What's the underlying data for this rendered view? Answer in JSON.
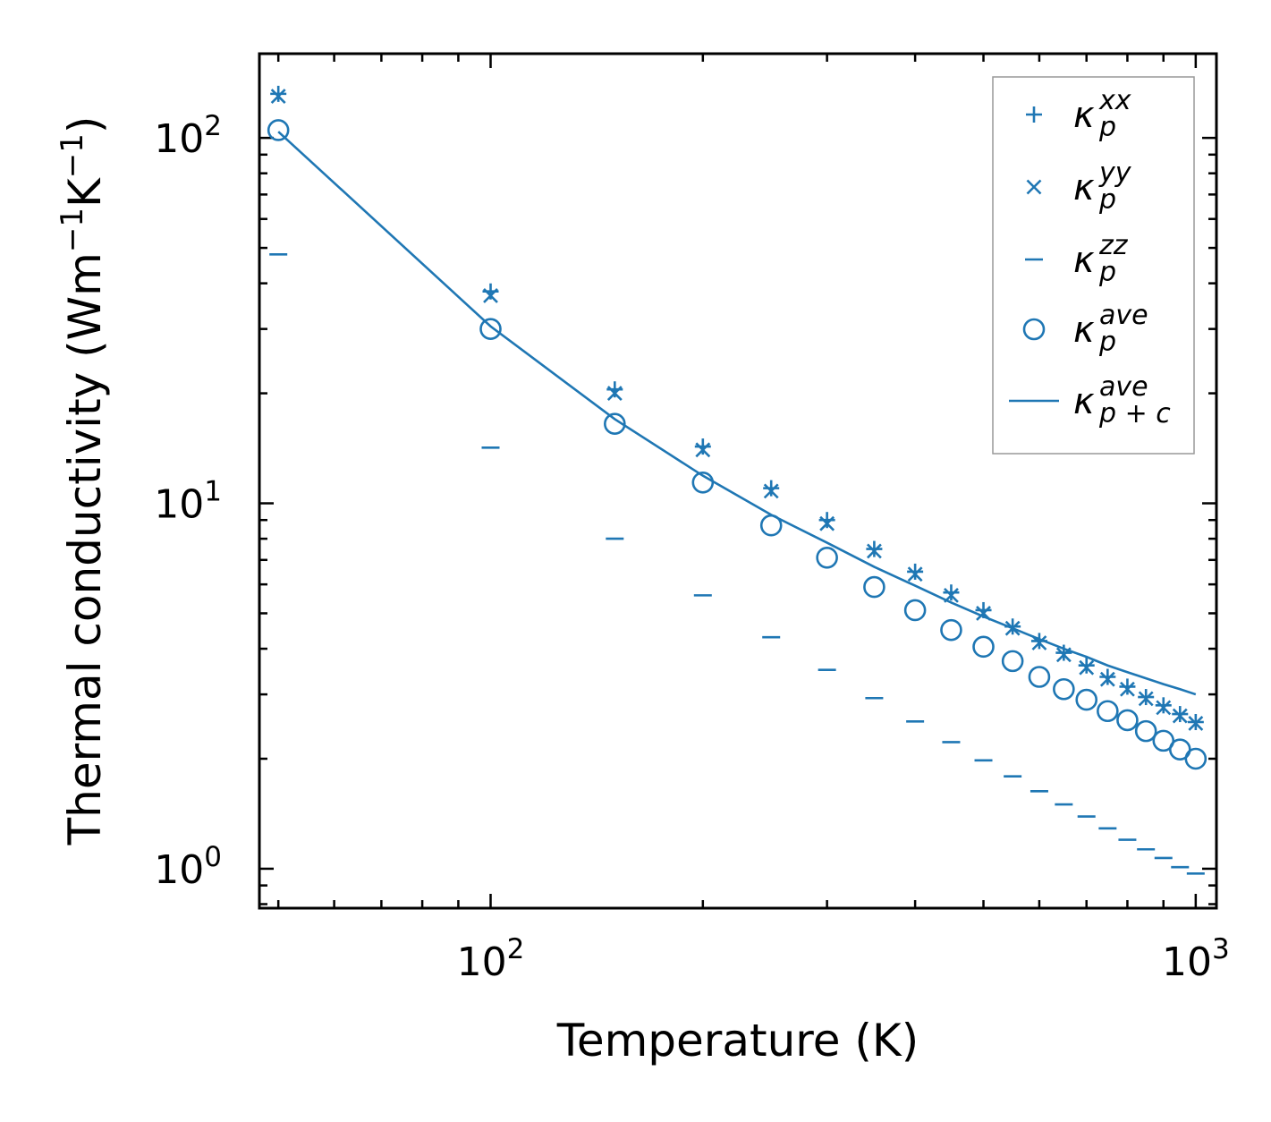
{
  "chart_data": {
    "type": "scatter",
    "title": "",
    "xlabel": "Temperature (K)",
    "ylabel": "Thermal conductivity (Wm$^{-1}$K$^{-1}$)",
    "ylabel_parts": {
      "base": "Thermal conductivity (Wm",
      "exp1": "−1",
      "mid": "K",
      "exp2": "−1",
      "end": ")"
    },
    "xscale": "log",
    "yscale": "log",
    "xlim": [
      47,
      1070
    ],
    "ylim": [
      0.78,
      170
    ],
    "xticks": [
      {
        "base": "10",
        "exp": "2",
        "value": 100
      },
      {
        "base": "10",
        "exp": "3",
        "value": 1000
      }
    ],
    "yticks": [
      {
        "base": "10",
        "exp": "0",
        "value": 1
      },
      {
        "base": "10",
        "exp": "1",
        "value": 10
      },
      {
        "base": "10",
        "exp": "2",
        "value": 100
      }
    ],
    "color": "#1f77b4",
    "legend_position": "top-right",
    "series": [
      {
        "name": "κ_p^xx",
        "label_main": "κ",
        "label_sub": "p",
        "label_sup": "xx",
        "marker": "plus",
        "x": [
          50,
          100,
          150,
          200,
          250,
          300,
          350,
          400,
          450,
          500,
          550,
          600,
          650,
          700,
          750,
          800,
          850,
          900,
          950,
          1000
        ],
        "y": [
          132,
          38,
          20.5,
          14.3,
          11,
          9,
          7.5,
          6.5,
          5.7,
          5.1,
          4.6,
          4.2,
          3.9,
          3.6,
          3.35,
          3.15,
          2.95,
          2.8,
          2.65,
          2.52
        ]
      },
      {
        "name": "κ_p^yy",
        "label_main": "κ",
        "label_sub": "p",
        "label_sup": "yy",
        "marker": "x",
        "x": [
          50,
          100,
          150,
          200,
          250,
          300,
          350,
          400,
          450,
          500,
          550,
          600,
          650,
          700,
          750,
          800,
          850,
          900,
          950,
          1000
        ],
        "y": [
          130,
          37,
          20,
          14,
          10.8,
          8.8,
          7.4,
          6.4,
          5.6,
          5.0,
          4.55,
          4.15,
          3.85,
          3.55,
          3.3,
          3.1,
          2.92,
          2.76,
          2.62,
          2.5
        ]
      },
      {
        "name": "κ_p^zz",
        "label_main": "κ",
        "label_sub": "p",
        "label_sup": "zz",
        "marker": "hline",
        "x": [
          50,
          100,
          150,
          200,
          250,
          300,
          350,
          400,
          450,
          500,
          550,
          600,
          650,
          700,
          750,
          800,
          850,
          900,
          950,
          1000
        ],
        "y": [
          48,
          14.2,
          8.0,
          5.6,
          4.3,
          3.5,
          2.93,
          2.53,
          2.22,
          1.98,
          1.79,
          1.63,
          1.5,
          1.39,
          1.29,
          1.2,
          1.13,
          1.07,
          1.01,
          0.97
        ]
      },
      {
        "name": "κ_p^ave",
        "label_main": "κ",
        "label_sub": "p",
        "label_sup": "ave",
        "marker": "circle",
        "x": [
          50,
          100,
          150,
          200,
          250,
          300,
          350,
          400,
          450,
          500,
          550,
          600,
          650,
          700,
          750,
          800,
          850,
          900,
          950,
          1000
        ],
        "y": [
          105,
          30,
          16.5,
          11.4,
          8.7,
          7.1,
          5.9,
          5.1,
          4.5,
          4.05,
          3.7,
          3.35,
          3.1,
          2.9,
          2.7,
          2.55,
          2.38,
          2.24,
          2.12,
          2.0
        ]
      },
      {
        "name": "κ_p+c^ave",
        "label_main": "κ",
        "label_sub": "p + c",
        "label_sup": "ave",
        "marker": "line",
        "x": [
          50,
          100,
          150,
          200,
          250,
          300,
          350,
          400,
          450,
          500,
          550,
          600,
          650,
          700,
          750,
          800,
          850,
          900,
          950,
          1000
        ],
        "y": [
          104,
          30.5,
          17.0,
          11.9,
          9.3,
          7.8,
          6.7,
          5.95,
          5.35,
          4.9,
          4.55,
          4.25,
          4.0,
          3.8,
          3.6,
          3.45,
          3.32,
          3.2,
          3.1,
          3.0
        ]
      }
    ]
  }
}
